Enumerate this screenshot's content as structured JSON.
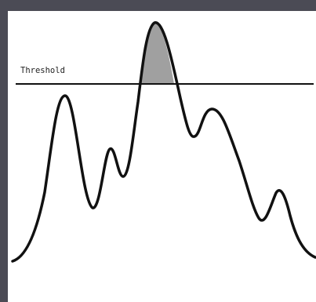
{
  "threshold": {
    "label": "Threshold"
  },
  "colors": {
    "frame": "#4b4b55",
    "background": "#ffffff",
    "curve": "#111111",
    "threshold_line": "#111111",
    "peak_fill": "#a0a0a0"
  }
}
